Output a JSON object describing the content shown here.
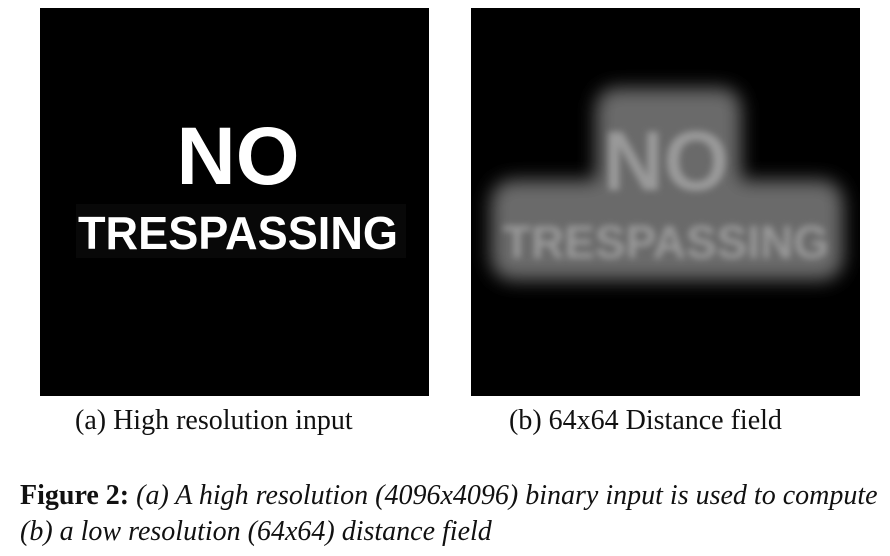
{
  "figure": {
    "panel_a": {
      "image_text_line1": "NO",
      "image_text_line2": "TRESPASSING",
      "subcaption": "(a) High resolution input"
    },
    "panel_b": {
      "image_text_line1": "NO",
      "image_text_line2": "TRESPASSING",
      "subcaption": "(b) 64x64 Distance field"
    },
    "caption_label": "Figure 2:",
    "caption_text": "(a) A high resolution (4096x4096) binary input is used to compute (b) a low resolution (64x64) distance field"
  }
}
